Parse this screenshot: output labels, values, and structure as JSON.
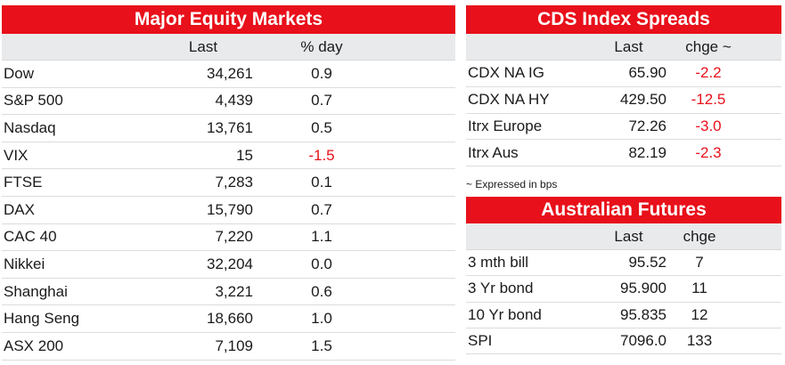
{
  "equity": {
    "title": "Major Equity Markets",
    "headers": {
      "last": "Last",
      "change": "% day"
    },
    "rows": [
      {
        "name": "Dow",
        "last": "34,261",
        "change": "0.9",
        "negative": false
      },
      {
        "name": "S&P 500",
        "last": "4,439",
        "change": "0.7",
        "negative": false
      },
      {
        "name": "Nasdaq",
        "last": "13,761",
        "change": "0.5",
        "negative": false
      },
      {
        "name": "VIX",
        "last": "15",
        "change": "-1.5",
        "negative": true
      },
      {
        "name": "FTSE",
        "last": "7,283",
        "change": "0.1",
        "negative": false
      },
      {
        "name": "DAX",
        "last": "15,790",
        "change": "0.7",
        "negative": false
      },
      {
        "name": "CAC 40",
        "last": "7,220",
        "change": "1.1",
        "negative": false
      },
      {
        "name": "Nikkei",
        "last": "32,204",
        "change": "0.0",
        "negative": false
      },
      {
        "name": "Shanghai",
        "last": "3,221",
        "change": "0.6",
        "negative": false
      },
      {
        "name": "Hang Seng",
        "last": "18,660",
        "change": "1.0",
        "negative": false
      },
      {
        "name": "ASX 200",
        "last": "7,109",
        "change": "1.5",
        "negative": false
      }
    ]
  },
  "cds": {
    "title": "CDS Index Spreads",
    "headers": {
      "last": "Last",
      "change": "chge ~"
    },
    "rows": [
      {
        "name": "CDX NA IG",
        "last": "65.90",
        "change": "-2.2",
        "negative": true
      },
      {
        "name": "CDX NA HY",
        "last": "429.50",
        "change": "-12.5",
        "negative": true
      },
      {
        "name": "Itrx Europe",
        "last": "72.26",
        "change": "-3.0",
        "negative": true
      },
      {
        "name": "Itrx Aus",
        "last": "82.19",
        "change": "-2.3",
        "negative": true
      }
    ],
    "footnote": "~ Expressed in bps"
  },
  "futures": {
    "title": "Australian Futures",
    "headers": {
      "last": "Last",
      "change": "chge"
    },
    "rows": [
      {
        "name": "3 mth bill",
        "last": "95.52",
        "change": "7",
        "negative": false
      },
      {
        "name": "3 Yr bond",
        "last": "95.900",
        "change": "11",
        "negative": false
      },
      {
        "name": "10 Yr bond",
        "last": "95.835",
        "change": "12",
        "negative": false
      },
      {
        "name": "SPI",
        "last": "7096.0",
        "change": "133",
        "negative": false
      }
    ]
  },
  "colors": {
    "accent": "#e8101a",
    "header_bg": "#e9eaec",
    "negative": "#e8101a"
  }
}
